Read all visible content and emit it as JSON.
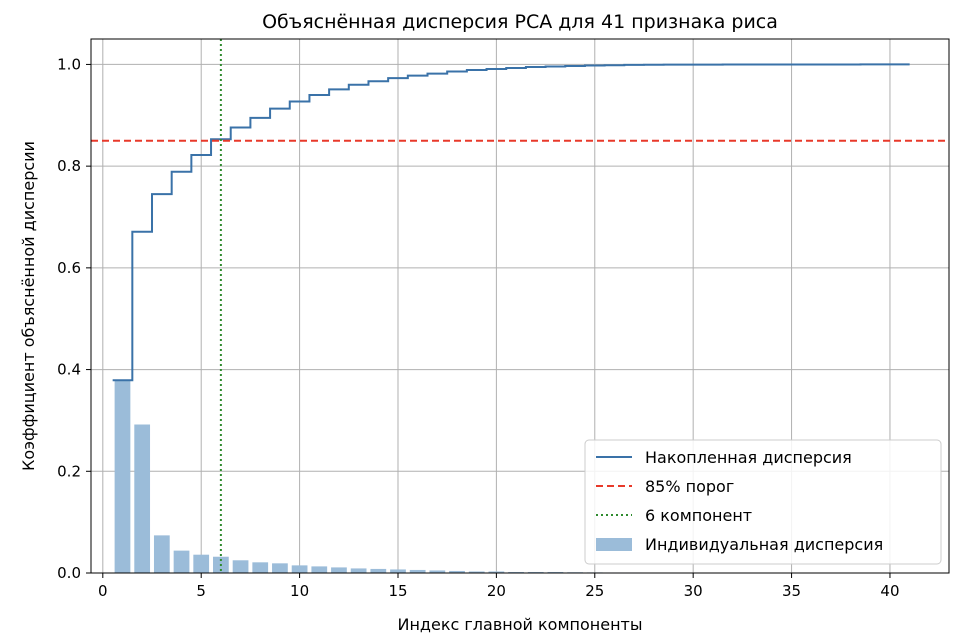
{
  "chart_data": {
    "type": "bar",
    "title": "Объяснённая дисперсия PCA для 41 признака риса",
    "xlabel": "Индекс главной компоненты",
    "ylabel": "Коэффициент объяснённой дисперсии",
    "xlim": [
      -0.6,
      43.0
    ],
    "ylim": [
      0.0,
      1.05
    ],
    "x_ticks": [
      0,
      5,
      10,
      15,
      20,
      25,
      30,
      35,
      40
    ],
    "x_tick_labels": [
      "0",
      "5",
      "10",
      "15",
      "20",
      "25",
      "30",
      "35",
      "40"
    ],
    "y_ticks": [
      0.0,
      0.2,
      0.4,
      0.6,
      0.8,
      1.0
    ],
    "y_tick_labels": [
      "0.0",
      "0.2",
      "0.4",
      "0.6",
      "0.8",
      "1.0"
    ],
    "grid": true,
    "legend_position": "lower-right",
    "components": [
      1,
      2,
      3,
      4,
      5,
      6,
      7,
      8,
      9,
      10,
      11,
      12,
      13,
      14,
      15,
      16,
      17,
      18,
      19,
      20,
      21,
      22,
      23,
      24,
      25,
      26,
      27,
      28,
      29,
      30,
      31,
      32,
      33,
      34,
      35,
      36,
      37,
      38,
      39,
      40,
      41
    ],
    "series": [
      {
        "name": "Накопленная дисперсия",
        "type": "step",
        "color": "#3a72a8",
        "values": [
          0.379,
          0.671,
          0.745,
          0.789,
          0.822,
          0.853,
          0.876,
          0.895,
          0.913,
          0.927,
          0.94,
          0.951,
          0.96,
          0.967,
          0.973,
          0.978,
          0.982,
          0.986,
          0.989,
          0.991,
          0.993,
          0.995,
          0.996,
          0.997,
          0.998,
          0.9985,
          0.999,
          0.9993,
          0.9995,
          0.9996,
          0.9997,
          0.9998,
          0.99985,
          0.9999,
          0.99993,
          0.99995,
          0.99997,
          0.99998,
          0.99999,
          1.0,
          1.0
        ]
      },
      {
        "name": "Индивидуальная дисперсия",
        "type": "bar",
        "color": "#9bbcd9",
        "values": [
          0.379,
          0.292,
          0.074,
          0.044,
          0.036,
          0.032,
          0.025,
          0.021,
          0.019,
          0.015,
          0.013,
          0.011,
          0.009,
          0.008,
          0.007,
          0.006,
          0.005,
          0.004,
          0.003,
          0.003,
          0.002,
          0.002,
          0.002,
          0.0015,
          0.0012,
          0.001,
          0.001,
          0.0008,
          0.0007,
          0.0006,
          0.0005,
          0.0004,
          0.0003,
          0.0003,
          0.0002,
          0.0002,
          0.0002,
          0.0001,
          0.0001,
          0.0001,
          0.0001
        ]
      }
    ],
    "reference_lines": [
      {
        "name": "85% порог",
        "orientation": "horizontal",
        "value": 0.85,
        "color": "#e8392a",
        "style": "dashed"
      },
      {
        "name": "6 компонент",
        "orientation": "vertical",
        "value": 6,
        "color": "#2e8b2e",
        "style": "dotted"
      }
    ]
  }
}
